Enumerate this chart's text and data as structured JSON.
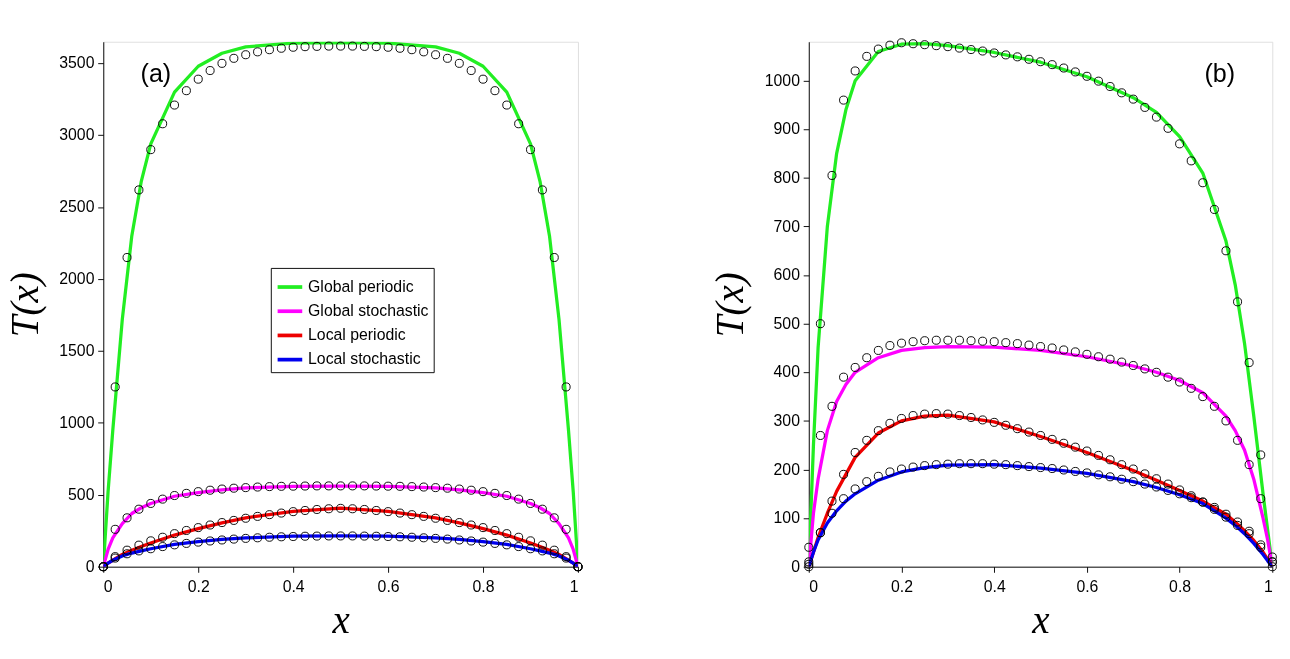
{
  "chart_data": [
    {
      "type": "line",
      "annotations": [
        "(a)"
      ],
      "xlabel": "x",
      "ylabel": "T(x)",
      "xlim": [
        0,
        1
      ],
      "ylim": [
        0,
        3650
      ],
      "xticks": [
        0,
        0.2,
        0.4,
        0.6,
        0.8,
        1
      ],
      "yticks": [
        0,
        500,
        1000,
        1500,
        2000,
        2500,
        3000,
        3500
      ],
      "grid": false,
      "legend": "center",
      "x": [
        0,
        0.025,
        0.05,
        0.075,
        0.1,
        0.125,
        0.15,
        0.175,
        0.2,
        0.225,
        0.25,
        0.275,
        0.3,
        0.325,
        0.35,
        0.375,
        0.4,
        0.425,
        0.45,
        0.475,
        0.5,
        0.525,
        0.55,
        0.575,
        0.6,
        0.625,
        0.65,
        0.675,
        0.7,
        0.725,
        0.75,
        0.775,
        0.8,
        0.825,
        0.85,
        0.875,
        0.9,
        0.925,
        0.95,
        0.975,
        1
      ],
      "series": [
        {
          "name": "Global periodic",
          "color": "#22ee22",
          "marker": "none",
          "x": [
            0,
            0.01,
            0.02,
            0.04,
            0.06,
            0.08,
            0.1,
            0.15,
            0.2,
            0.25,
            0.3,
            0.4,
            0.5,
            0.6,
            0.7,
            0.75,
            0.8,
            0.85,
            0.9,
            0.92,
            0.94,
            0.96,
            0.98,
            0.99,
            1
          ],
          "values": [
            0,
            520,
            950,
            1720,
            2300,
            2680,
            2940,
            3300,
            3480,
            3570,
            3615,
            3640,
            3645,
            3640,
            3615,
            3570,
            3480,
            3300,
            2940,
            2680,
            2300,
            1720,
            950,
            520,
            0
          ]
        },
        {
          "name": "Global stochastic",
          "color": "#ff00ff",
          "marker": "none",
          "x": [
            0,
            0.01,
            0.02,
            0.04,
            0.06,
            0.08,
            0.1,
            0.15,
            0.2,
            0.25,
            0.3,
            0.4,
            0.5,
            0.6,
            0.7,
            0.75,
            0.8,
            0.85,
            0.9,
            0.92,
            0.94,
            0.96,
            0.98,
            0.99,
            1
          ],
          "values": [
            0,
            120,
            200,
            300,
            370,
            410,
            440,
            490,
            515,
            535,
            548,
            558,
            560,
            558,
            548,
            535,
            515,
            490,
            440,
            410,
            370,
            300,
            200,
            120,
            0
          ]
        },
        {
          "name": "Local periodic",
          "color": "#ee0000",
          "marker": "none",
          "x": [
            0,
            0.01,
            0.02,
            0.04,
            0.06,
            0.08,
            0.1,
            0.15,
            0.2,
            0.25,
            0.3,
            0.4,
            0.5,
            0.6,
            0.7,
            0.75,
            0.8,
            0.85,
            0.9,
            0.92,
            0.94,
            0.96,
            0.98,
            0.99,
            1
          ],
          "values": [
            0,
            25,
            45,
            85,
            115,
            140,
            165,
            220,
            265,
            305,
            340,
            385,
            408,
            385,
            340,
            305,
            265,
            220,
            165,
            140,
            115,
            85,
            45,
            25,
            0
          ]
        },
        {
          "name": "Local stochastic",
          "color": "#0000ee",
          "marker": "none",
          "x": [
            0,
            0.01,
            0.02,
            0.04,
            0.06,
            0.08,
            0.1,
            0.15,
            0.2,
            0.25,
            0.3,
            0.4,
            0.5,
            0.6,
            0.7,
            0.75,
            0.8,
            0.85,
            0.9,
            0.92,
            0.94,
            0.96,
            0.98,
            0.99,
            1
          ],
          "values": [
            0,
            25,
            45,
            75,
            95,
            110,
            125,
            155,
            175,
            190,
            200,
            212,
            214,
            212,
            200,
            190,
            175,
            155,
            125,
            110,
            95,
            75,
            45,
            25,
            0
          ]
        },
        {
          "type": "scatter",
          "color": "#000000",
          "marker": "circle",
          "values": [
            0,
            1250,
            2150,
            2620,
            2900,
            3080,
            3210,
            3310,
            3390,
            3450,
            3500,
            3535,
            3560,
            3580,
            3595,
            3605,
            3612,
            3616,
            3618,
            3620,
            3620,
            3620,
            3618,
            3616,
            3612,
            3605,
            3595,
            3580,
            3560,
            3535,
            3500,
            3450,
            3390,
            3310,
            3210,
            3080,
            2900,
            2620,
            2150,
            1250,
            0
          ]
        },
        {
          "type": "scatter",
          "color": "#000000",
          "marker": "circle",
          "values": [
            0,
            260,
            340,
            400,
            440,
            470,
            495,
            510,
            522,
            532,
            540,
            546,
            550,
            554,
            557,
            559,
            560,
            561,
            562,
            562,
            562,
            562,
            562,
            561,
            560,
            559,
            557,
            554,
            550,
            546,
            540,
            532,
            522,
            510,
            495,
            470,
            440,
            400,
            340,
            260,
            0
          ]
        },
        {
          "type": "scatter",
          "color": "#000000",
          "marker": "circle",
          "values": [
            0,
            70,
            115,
            150,
            180,
            205,
            230,
            252,
            272,
            290,
            307,
            322,
            337,
            350,
            362,
            373,
            383,
            391,
            398,
            403,
            406,
            403,
            398,
            391,
            383,
            373,
            362,
            350,
            337,
            322,
            307,
            290,
            272,
            252,
            230,
            205,
            180,
            150,
            115,
            70,
            0
          ]
        },
        {
          "type": "scatter",
          "color": "#000000",
          "marker": "circle",
          "values": [
            0,
            60,
            90,
            110,
            125,
            140,
            152,
            162,
            171,
            179,
            186,
            192,
            197,
            201,
            205,
            208,
            210,
            212,
            213,
            214,
            214,
            214,
            213,
            212,
            210,
            208,
            205,
            201,
            197,
            192,
            186,
            179,
            171,
            162,
            152,
            140,
            125,
            110,
            90,
            60,
            0
          ]
        }
      ]
    },
    {
      "type": "line",
      "annotations": [
        "(b)"
      ],
      "xlabel": "x",
      "ylabel": "T(x)",
      "xlim": [
        0,
        1
      ],
      "ylim": [
        0,
        1080
      ],
      "xticks": [
        0,
        0.2,
        0.4,
        0.6,
        0.8,
        1
      ],
      "yticks": [
        0,
        100,
        200,
        300,
        400,
        500,
        600,
        700,
        800,
        900,
        1000
      ],
      "grid": false,
      "x": [
        0,
        0.025,
        0.05,
        0.075,
        0.1,
        0.125,
        0.15,
        0.175,
        0.2,
        0.225,
        0.25,
        0.275,
        0.3,
        0.325,
        0.35,
        0.375,
        0.4,
        0.425,
        0.45,
        0.475,
        0.5,
        0.525,
        0.55,
        0.575,
        0.6,
        0.625,
        0.65,
        0.675,
        0.7,
        0.725,
        0.75,
        0.775,
        0.8,
        0.825,
        0.85,
        0.875,
        0.9,
        0.925,
        0.95,
        0.975,
        1
      ],
      "series": [
        {
          "color": "#22ee22",
          "marker": "none",
          "x": [
            0,
            0.01,
            0.02,
            0.04,
            0.06,
            0.08,
            0.1,
            0.15,
            0.2,
            0.25,
            0.3,
            0.4,
            0.5,
            0.6,
            0.7,
            0.75,
            0.8,
            0.85,
            0.9,
            0.92,
            0.94,
            0.96,
            0.98,
            0.99,
            1
          ],
          "values": [
            0,
            250,
            450,
            700,
            850,
            940,
            1000,
            1060,
            1075,
            1076,
            1072,
            1058,
            1038,
            1008,
            965,
            935,
            885,
            810,
            670,
            580,
            460,
            310,
            150,
            75,
            0
          ]
        },
        {
          "color": "#ff00ff",
          "marker": "none",
          "x": [
            0,
            0.01,
            0.02,
            0.04,
            0.06,
            0.08,
            0.1,
            0.15,
            0.2,
            0.25,
            0.3,
            0.4,
            0.5,
            0.6,
            0.7,
            0.75,
            0.8,
            0.85,
            0.9,
            0.92,
            0.94,
            0.96,
            0.98,
            0.99,
            1
          ],
          "values": [
            0,
            110,
            180,
            280,
            340,
            375,
            400,
            430,
            445,
            451,
            453,
            452,
            445,
            432,
            413,
            400,
            383,
            358,
            310,
            280,
            240,
            180,
            100,
            55,
            0
          ]
        },
        {
          "color": "#ee0000",
          "marker": "none",
          "x": [
            0,
            0.01,
            0.02,
            0.04,
            0.06,
            0.08,
            0.1,
            0.15,
            0.2,
            0.25,
            0.3,
            0.4,
            0.5,
            0.6,
            0.7,
            0.75,
            0.8,
            0.85,
            0.9,
            0.92,
            0.94,
            0.96,
            0.98,
            0.99,
            1
          ],
          "values": [
            0,
            30,
            60,
            110,
            155,
            190,
            225,
            275,
            300,
            310,
            312,
            298,
            268,
            235,
            198,
            178,
            157,
            135,
            108,
            92,
            74,
            54,
            30,
            15,
            0
          ]
        },
        {
          "color": "#0000ee",
          "marker": "none",
          "x": [
            0,
            0.01,
            0.02,
            0.04,
            0.06,
            0.08,
            0.1,
            0.15,
            0.2,
            0.25,
            0.3,
            0.4,
            0.5,
            0.6,
            0.7,
            0.75,
            0.8,
            0.85,
            0.9,
            0.92,
            0.94,
            0.96,
            0.98,
            0.99,
            1
          ],
          "values": [
            0,
            30,
            55,
            90,
            115,
            135,
            150,
            178,
            195,
            204,
            209,
            210,
            203,
            192,
            175,
            163,
            148,
            130,
            100,
            85,
            68,
            48,
            25,
            12,
            0
          ]
        },
        {
          "type": "scatter",
          "color": "#000000",
          "marker": "circle",
          "values": [
            0,
            500,
            805,
            960,
            1020,
            1050,
            1065,
            1073,
            1078,
            1076,
            1074,
            1072,
            1070,
            1067,
            1064,
            1061,
            1057,
            1053,
            1049,
            1044,
            1039,
            1033,
            1026,
            1018,
            1009,
            999,
            988,
            975,
            962,
            945,
            925,
            902,
            870,
            835,
            790,
            735,
            650,
            545,
            420,
            230,
            0
          ]
        },
        {
          "type": "scatter",
          "color": "#000000",
          "marker": "circle",
          "values": [
            40,
            270,
            330,
            390,
            410,
            430,
            445,
            455,
            460,
            463,
            465,
            466,
            466,
            466,
            465,
            464,
            463,
            461,
            459,
            456,
            453,
            450,
            446,
            442,
            437,
            432,
            427,
            421,
            414,
            407,
            400,
            390,
            380,
            367,
            350,
            330,
            300,
            260,
            210,
            140,
            20
          ]
        },
        {
          "type": "scatter",
          "color": "#000000",
          "marker": "circle",
          "values": [
            10,
            70,
            135,
            190,
            235,
            260,
            280,
            295,
            305,
            311,
            314,
            315,
            314,
            311,
            307,
            302,
            297,
            291,
            284,
            277,
            270,
            262,
            254,
            246,
            238,
            229,
            220,
            210,
            201,
            191,
            181,
            170,
            158,
            146,
            133,
            118,
            102,
            85,
            68,
            40,
            10
          ]
        },
        {
          "type": "scatter",
          "color": "#000000",
          "marker": "circle",
          "values": [
            5,
            70,
            110,
            140,
            160,
            175,
            186,
            195,
            201,
            205,
            208,
            210,
            211,
            212,
            212,
            212,
            211,
            210,
            208,
            206,
            204,
            202,
            199,
            196,
            193,
            189,
            185,
            180,
            175,
            170,
            164,
            157,
            150,
            142,
            133,
            122,
            108,
            92,
            73,
            45,
            10
          ]
        }
      ]
    }
  ]
}
